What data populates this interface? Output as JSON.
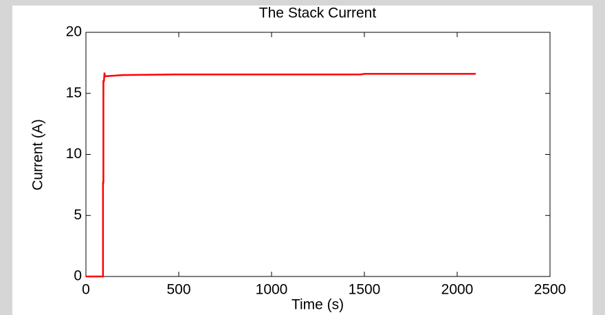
{
  "chart_data": {
    "type": "line",
    "title": "The Stack Current",
    "x_label": "Time (s)",
    "y_label": "Current (A)",
    "xlim": [
      0,
      2500
    ],
    "ylim": [
      0,
      20
    ],
    "xticks": [
      0,
      500,
      1000,
      1500,
      2000,
      2500
    ],
    "yticks": [
      0,
      5,
      10,
      15,
      20
    ],
    "grid": false,
    "series": [
      {
        "name": "Stack current",
        "color": "#ff0000",
        "x": [
          0,
          92,
          92,
          94,
          94,
          97,
          100,
          102,
          104,
          200,
          480,
          1480,
          1500,
          2100
        ],
        "values": [
          0,
          0,
          7.7,
          7.7,
          16,
          16,
          16.7,
          16.4,
          16.4,
          16.5,
          16.55,
          16.55,
          16.6,
          16.6
        ]
      }
    ]
  }
}
